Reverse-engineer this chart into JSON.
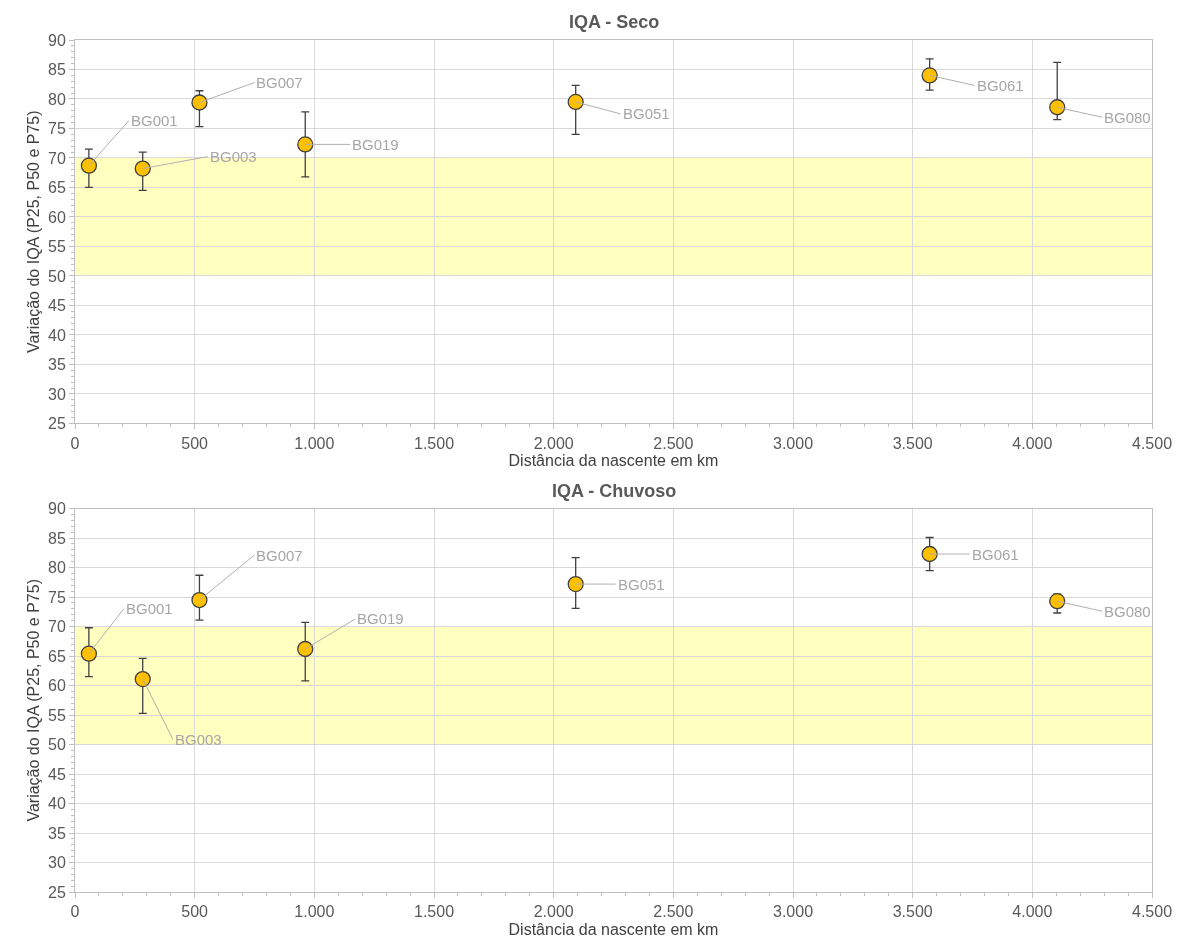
{
  "chart_data": [
    {
      "type": "scatter",
      "title": "IQA - Seco",
      "xlabel": "Distância da nascente em km",
      "ylabel": "Variação do IQA (P25, P50 e P75)",
      "x": [
        58,
        283,
        520,
        962,
        2092,
        3571,
        4104
      ],
      "series": [
        {
          "color": "#ffc000",
          "values": [
            68.7,
            68.2,
            79.4,
            72.3,
            79.5,
            84,
            78.6
          ],
          "errors": [
            [
              65,
              71.5
            ],
            [
              64.5,
              71
            ],
            [
              75.3,
              81.4
            ],
            [
              66.8,
              77.8
            ],
            [
              74,
              82.3
            ],
            [
              81.5,
              86.8
            ],
            [
              76.5,
              86.2
            ]
          ]
        }
      ],
      "annotations": [
        {
          "text": "BG001",
          "x": 58,
          "y": 68.7
        },
        {
          "text": "BG003",
          "x": 283,
          "y": 68.2
        },
        {
          "text": "BG007",
          "x": 520,
          "y": 79.4
        },
        {
          "text": "BG019",
          "x": 962,
          "y": 72.3
        },
        {
          "text": "BG051",
          "x": 2092,
          "y": 79.5
        },
        {
          "text": "BG061",
          "x": 3571,
          "y": 84
        },
        {
          "text": "BG080",
          "x": 4104,
          "y": 78.6
        }
      ],
      "bands": [
        {
          "axis": "y",
          "from": 50,
          "to": 70,
          "color": "#ffffc0"
        }
      ],
      "xlim": [
        0,
        4500
      ],
      "xticks": [
        0,
        500,
        {
          "value": 1000,
          "label": "1.000"
        },
        {
          "value": 1500,
          "label": "1.500"
        },
        {
          "value": 2000,
          "label": "2.000"
        },
        {
          "value": 2500,
          "label": "2.500"
        },
        {
          "value": 3000,
          "label": "3.000"
        },
        {
          "value": 3500,
          "label": "3.500"
        },
        {
          "value": 4000,
          "label": "4.000"
        },
        {
          "value": 4500,
          "label": "4.500"
        }
      ],
      "ylim": [
        25,
        90
      ],
      "yticks": [
        25,
        30,
        35,
        40,
        45,
        50,
        55,
        60,
        65,
        70,
        75,
        80,
        85,
        90
      ],
      "grid": true,
      "marker": "circle"
    },
    {
      "type": "scatter",
      "title": "IQA - Chuvoso",
      "xlabel": "Distância da nascente em km",
      "ylabel": "Variação do IQA (P25, P50 e P75)",
      "x": [
        58,
        283,
        520,
        962,
        2092,
        3571,
        4104
      ],
      "series": [
        {
          "color": "#ffc000",
          "values": [
            65.4,
            61.1,
            74.5,
            66.2,
            77.2,
            82.3,
            74.3
          ],
          "errors": [
            [
              61.5,
              69.8
            ],
            [
              55.3,
              64.6
            ],
            [
              71.1,
              78.7
            ],
            [
              60.8,
              70.7
            ],
            [
              73.1,
              81.7
            ],
            [
              79.5,
              85.1
            ],
            [
              72.3,
              75.5
            ]
          ]
        }
      ],
      "annotations": [
        {
          "text": "BG001",
          "x": 58,
          "y": 65.4
        },
        {
          "text": "BG003",
          "x": 283,
          "y": 61.1
        },
        {
          "text": "BG007",
          "x": 520,
          "y": 74.5
        },
        {
          "text": "BG019",
          "x": 962,
          "y": 66.2
        },
        {
          "text": "BG051",
          "x": 2092,
          "y": 77.2
        },
        {
          "text": "BG061",
          "x": 3571,
          "y": 82.3
        },
        {
          "text": "BG080",
          "x": 4104,
          "y": 74.3
        }
      ],
      "bands": [
        {
          "axis": "y",
          "from": 50,
          "to": 70,
          "color": "#ffffc0"
        }
      ],
      "xlim": [
        0,
        4500
      ],
      "xticks": [
        0,
        500,
        {
          "value": 1000,
          "label": "1.000"
        },
        {
          "value": 1500,
          "label": "1.500"
        },
        {
          "value": 2000,
          "label": "2.000"
        },
        {
          "value": 2500,
          "label": "2.500"
        },
        {
          "value": 3000,
          "label": "3.000"
        },
        {
          "value": 3500,
          "label": "3.500"
        },
        {
          "value": 4000,
          "label": "4.000"
        },
        {
          "value": 4500,
          "label": "4.500"
        }
      ],
      "ylim": [
        25,
        90
      ],
      "yticks": [
        25,
        30,
        35,
        40,
        45,
        50,
        55,
        60,
        65,
        70,
        75,
        80,
        85,
        90
      ],
      "grid": true,
      "marker": "circle"
    }
  ]
}
